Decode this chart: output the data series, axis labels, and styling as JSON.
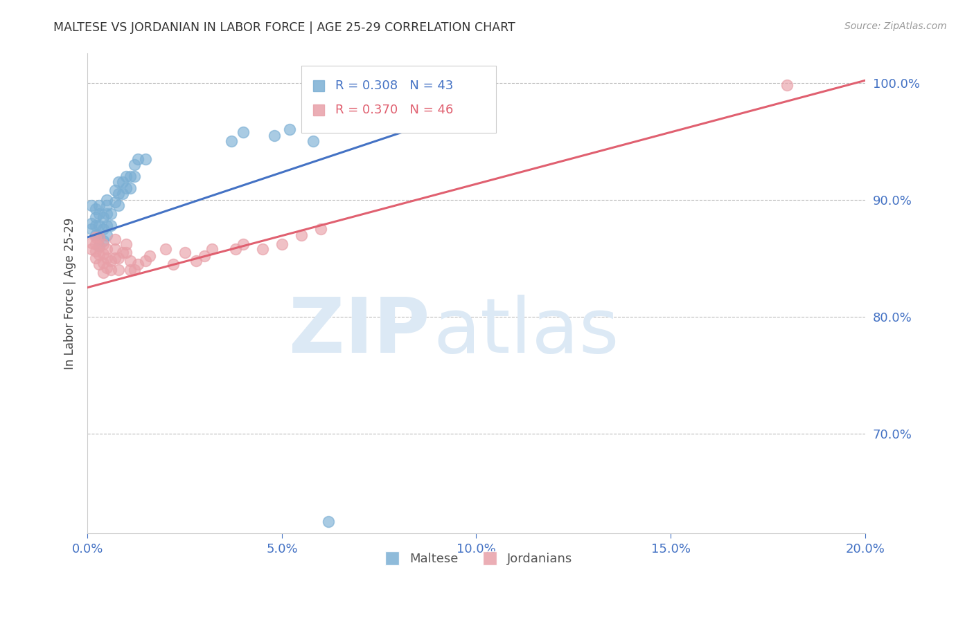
{
  "title": "MALTESE VS JORDANIAN IN LABOR FORCE | AGE 25-29 CORRELATION CHART",
  "source": "Source: ZipAtlas.com",
  "ylabel": "In Labor Force | Age 25-29",
  "xlim": [
    0.0,
    0.2
  ],
  "ylim": [
    0.615,
    1.025
  ],
  "yticks": [
    0.7,
    0.8,
    0.9,
    1.0
  ],
  "xticks": [
    0.0,
    0.05,
    0.1,
    0.15,
    0.2
  ],
  "maltese_color": "#7bafd4",
  "jordanian_color": "#e8a0a8",
  "maltese_line_color": "#4472c4",
  "jordanian_line_color": "#e06070",
  "legend_maltese": "Maltese",
  "legend_jordanian": "Jordanians",
  "R_maltese": 0.308,
  "N_maltese": 43,
  "R_jordanian": 0.37,
  "N_jordanian": 46,
  "maltese_x": [
    0.001,
    0.001,
    0.001,
    0.002,
    0.002,
    0.002,
    0.002,
    0.003,
    0.003,
    0.003,
    0.003,
    0.003,
    0.004,
    0.004,
    0.004,
    0.005,
    0.005,
    0.005,
    0.005,
    0.005,
    0.006,
    0.006,
    0.007,
    0.007,
    0.008,
    0.008,
    0.008,
    0.009,
    0.009,
    0.01,
    0.01,
    0.011,
    0.011,
    0.012,
    0.012,
    0.013,
    0.015,
    0.037,
    0.04,
    0.048,
    0.052,
    0.058,
    0.062
  ],
  "maltese_y": [
    0.875,
    0.88,
    0.895,
    0.87,
    0.878,
    0.885,
    0.892,
    0.86,
    0.868,
    0.878,
    0.888,
    0.895,
    0.865,
    0.875,
    0.885,
    0.87,
    0.878,
    0.888,
    0.895,
    0.9,
    0.878,
    0.888,
    0.898,
    0.908,
    0.895,
    0.905,
    0.915,
    0.905,
    0.915,
    0.91,
    0.92,
    0.91,
    0.92,
    0.92,
    0.93,
    0.935,
    0.935,
    0.95,
    0.958,
    0.955,
    0.96,
    0.95,
    0.625
  ],
  "jordanian_x": [
    0.001,
    0.001,
    0.002,
    0.002,
    0.002,
    0.002,
    0.003,
    0.003,
    0.003,
    0.003,
    0.004,
    0.004,
    0.004,
    0.004,
    0.005,
    0.005,
    0.005,
    0.006,
    0.006,
    0.007,
    0.007,
    0.007,
    0.008,
    0.008,
    0.009,
    0.01,
    0.01,
    0.011,
    0.011,
    0.012,
    0.013,
    0.015,
    0.016,
    0.02,
    0.022,
    0.025,
    0.028,
    0.03,
    0.032,
    0.038,
    0.04,
    0.045,
    0.05,
    0.055,
    0.06,
    0.18
  ],
  "jordanian_y": [
    0.858,
    0.863,
    0.85,
    0.856,
    0.862,
    0.868,
    0.845,
    0.853,
    0.86,
    0.868,
    0.838,
    0.846,
    0.854,
    0.862,
    0.842,
    0.85,
    0.858,
    0.84,
    0.848,
    0.85,
    0.858,
    0.866,
    0.84,
    0.85,
    0.855,
    0.855,
    0.862,
    0.84,
    0.848,
    0.84,
    0.845,
    0.848,
    0.852,
    0.858,
    0.845,
    0.855,
    0.848,
    0.852,
    0.858,
    0.858,
    0.862,
    0.858,
    0.862,
    0.87,
    0.875,
    0.998
  ],
  "maltese_line_x": [
    0.0,
    0.083
  ],
  "maltese_line_y": [
    0.868,
    0.96
  ],
  "jordanian_line_x": [
    0.0,
    0.2
  ],
  "jordanian_line_y": [
    0.825,
    1.002
  ],
  "background_color": "#ffffff",
  "grid_color": "#bbbbbb",
  "tick_label_color": "#4472c4"
}
